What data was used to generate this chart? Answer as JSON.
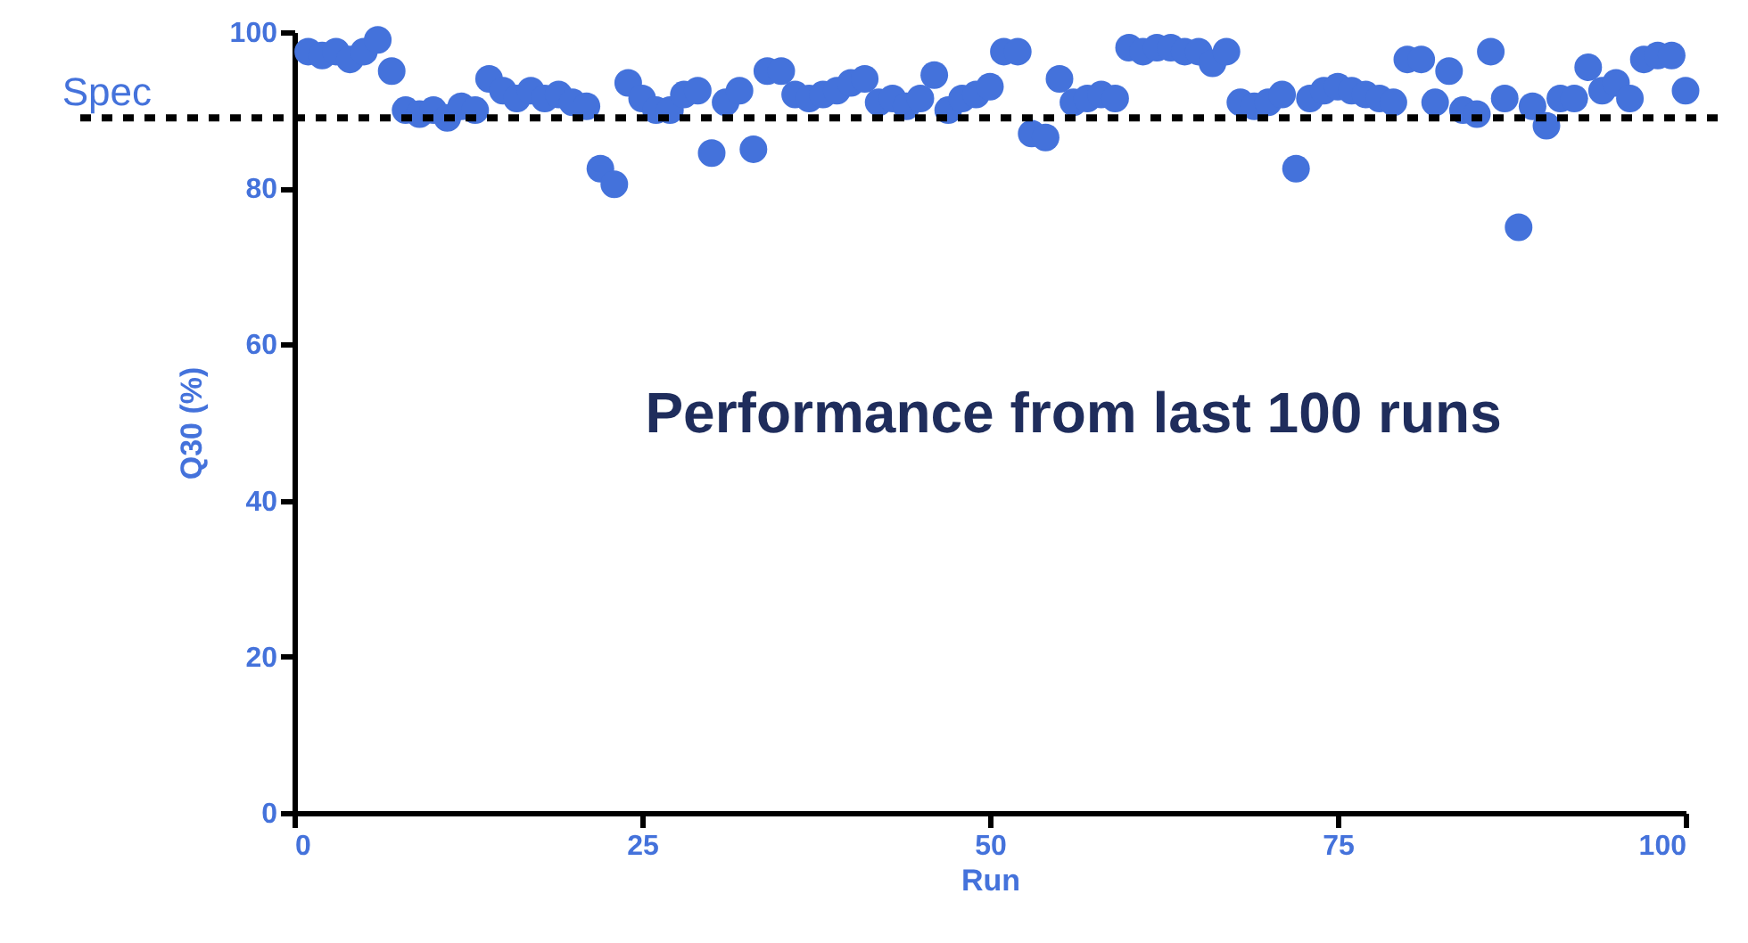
{
  "chart_data": {
    "type": "scatter",
    "xlabel": "Run",
    "ylabel": "Q30 (%)",
    "x": [
      1,
      2,
      3,
      4,
      5,
      6,
      7,
      8,
      9,
      10,
      11,
      12,
      13,
      14,
      15,
      16,
      17,
      18,
      19,
      20,
      21,
      22,
      23,
      24,
      25,
      26,
      27,
      28,
      29,
      30,
      31,
      32,
      33,
      34,
      35,
      36,
      37,
      38,
      39,
      40,
      41,
      42,
      43,
      44,
      45,
      46,
      47,
      48,
      49,
      50,
      51,
      52,
      53,
      54,
      55,
      56,
      57,
      58,
      59,
      60,
      61,
      62,
      63,
      64,
      65,
      66,
      67,
      68,
      69,
      70,
      71,
      72,
      73,
      74,
      75,
      76,
      77,
      78,
      79,
      80,
      81,
      82,
      83,
      84,
      85,
      86,
      87,
      88,
      89,
      90,
      91,
      92,
      93,
      94,
      95,
      96,
      97,
      98,
      99,
      100
    ],
    "series": [
      {
        "color": "#4472db",
        "values": [
          97.5,
          97,
          97.5,
          96.5,
          97.5,
          99,
          95,
          90,
          89.5,
          90,
          89,
          90.5,
          90,
          94,
          92.5,
          91.5,
          92.5,
          91.5,
          92,
          91,
          90.5,
          82.5,
          80.5,
          93.5,
          91.5,
          90,
          90,
          92,
          92.5,
          84.5,
          91,
          92.5,
          85,
          95,
          95,
          92,
          91.5,
          92,
          92.5,
          93.5,
          94,
          91,
          91.5,
          90.5,
          91.5,
          94.5,
          90,
          91.5,
          92,
          93,
          97.5,
          97.5,
          87,
          86.5,
          94,
          91,
          91.5,
          92,
          91.5,
          98,
          97.5,
          98,
          98,
          97.5,
          97.5,
          96,
          97.5,
          91,
          90.5,
          91,
          92,
          82.5,
          91.5,
          92.5,
          93,
          92.5,
          92,
          91.5,
          91,
          96.5,
          96.5,
          91,
          95,
          90,
          89.5,
          97.5,
          91.5,
          75,
          90.5,
          88,
          91.5,
          91.5,
          95.5,
          92.5,
          93.5,
          91.5,
          96.5,
          97,
          97,
          92.5
        ]
      }
    ],
    "xlim": [
      0,
      100
    ],
    "xticks": [
      0,
      25,
      50,
      75,
      100
    ],
    "ylim": [
      0,
      100
    ],
    "yticks": [
      0,
      20,
      40,
      60,
      80,
      100
    ],
    "ref_lines": [
      {
        "axis": "y",
        "value": 89,
        "label": "Spec",
        "color": "#000000",
        "line_style": "dotted"
      }
    ],
    "annotations": [
      "Performance from last 100 runs"
    ],
    "marker": "circle",
    "grid": false
  }
}
